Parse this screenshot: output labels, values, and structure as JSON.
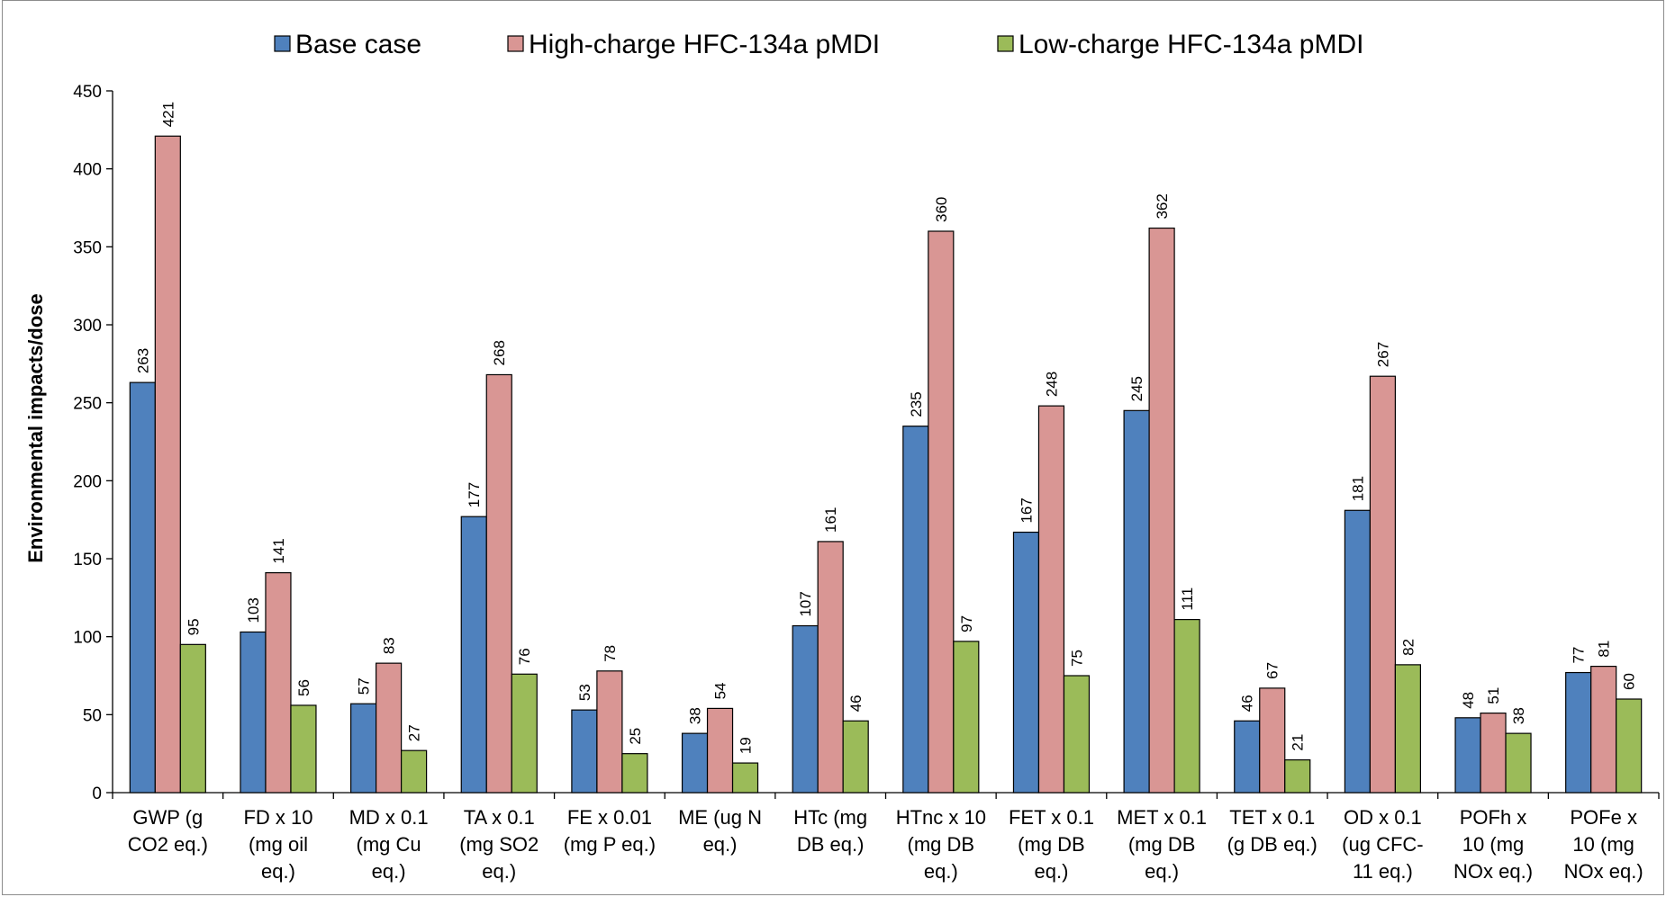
{
  "chart_data": {
    "type": "bar",
    "title": "",
    "xlabel": "",
    "ylabel": "Environmental impacts/dose",
    "ylim": [
      0,
      450
    ],
    "yticks": [
      0,
      50,
      100,
      150,
      200,
      250,
      300,
      350,
      400,
      450
    ],
    "grid": false,
    "legend_position": "top",
    "categories": [
      [
        "GWP (g",
        "CO2 eq.)"
      ],
      [
        "FD x 10",
        "(mg oil",
        "eq.)"
      ],
      [
        "MD x 0.1",
        "(mg Cu",
        "eq.)"
      ],
      [
        "TA x 0.1",
        "(mg SO2",
        "eq.)"
      ],
      [
        "FE x 0.01",
        "(mg P eq.)"
      ],
      [
        "ME (ug N",
        "eq.)"
      ],
      [
        "HTc (mg",
        "DB eq.)"
      ],
      [
        "HTnc x 10",
        "(mg DB",
        "eq.)"
      ],
      [
        "FET x 0.1",
        "(mg DB",
        "eq.)"
      ],
      [
        "MET x 0.1",
        "(mg DB",
        "eq.)"
      ],
      [
        "TET x 0.1",
        "(g DB eq.)"
      ],
      [
        "OD x 0.1",
        "(ug CFC-",
        "11 eq.)"
      ],
      [
        "POFh x",
        "10 (mg",
        "NOx eq.)"
      ],
      [
        "POFe x",
        "10 (mg",
        "NOx eq.)"
      ]
    ],
    "series": [
      {
        "name": "Base case",
        "color": "#4f81bd",
        "values": [
          263,
          103,
          57,
          177,
          53,
          38,
          107,
          235,
          167,
          245,
          46,
          181,
          48,
          77
        ]
      },
      {
        "name": "High-charge HFC-134a pMDI",
        "color": "#d99694",
        "values": [
          421,
          141,
          83,
          268,
          78,
          54,
          161,
          360,
          248,
          362,
          67,
          267,
          51,
          81
        ]
      },
      {
        "name": "Low-charge HFC-134a pMDI",
        "color": "#9bbb59",
        "values": [
          95,
          56,
          27,
          76,
          25,
          19,
          46,
          97,
          75,
          111,
          21,
          82,
          38,
          60
        ]
      }
    ]
  }
}
